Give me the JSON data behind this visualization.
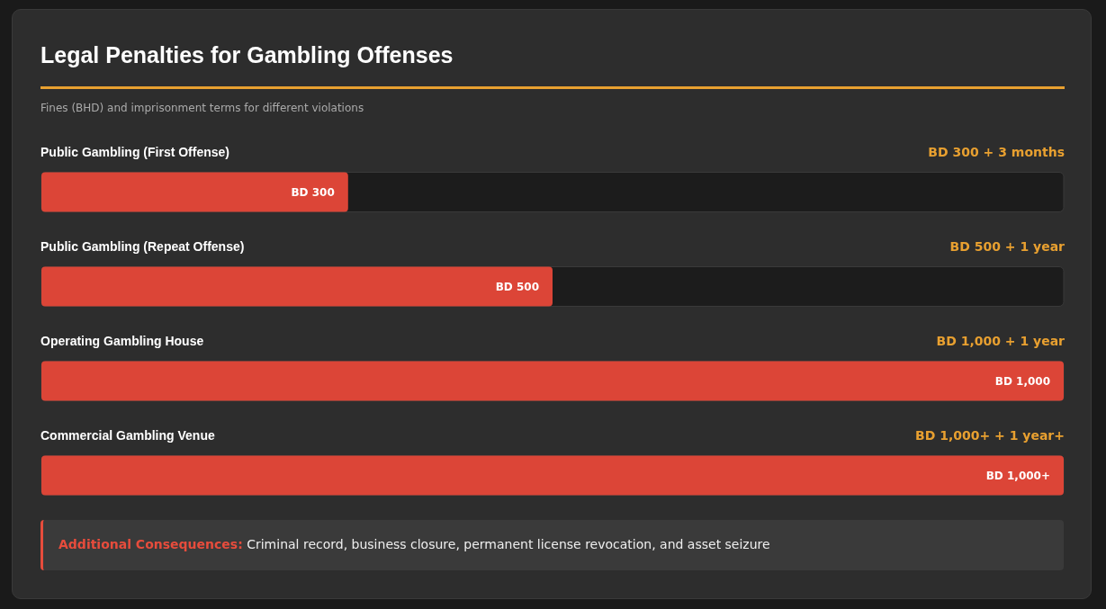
{
  "chart_data": {
    "type": "bar",
    "orientation": "horizontal",
    "title": "Legal Penalties for Gambling Offenses",
    "subtitle": "Fines (BHD) and imprisonment terms for different violations",
    "categories": [
      "Public Gambling (First Offense)",
      "Public Gambling (Repeat Offense)",
      "Operating Gambling House",
      "Commercial Gambling Venue"
    ],
    "values": [
      300,
      500,
      1000,
      1000
    ],
    "value_labels": [
      "BD 300",
      "BD 500",
      "BD 1,000",
      "BD 1,000+"
    ],
    "color": "#dc4537",
    "xlim": [
      0,
      1000
    ],
    "annotations": [
      "BD 300 + 3 months",
      "BD 500 + 1 year",
      "BD 1,000 + 1 year",
      "BD 1,000+ + 1 year+",
      "Additional Consequences: Criminal record, business closure, permanent license revocation, and asset seizure"
    ]
  }
}
